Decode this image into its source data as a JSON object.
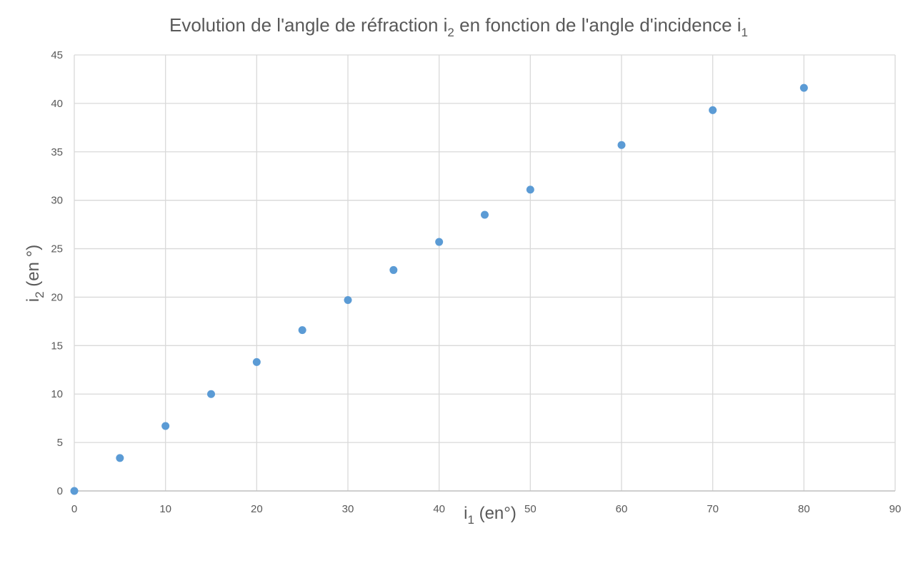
{
  "chart_data": {
    "type": "scatter",
    "title": {
      "prefix": "Evolution de l'angle de réfraction i",
      "sub1": "2",
      "middle": " en fonction de l'angle d'incidence i",
      "sub2": "1"
    },
    "xlabel": {
      "base": "i",
      "sub": "1",
      "rest": " (en°)"
    },
    "ylabel": {
      "base": "i",
      "sub": "2",
      "rest": " (en °)"
    },
    "xlim": [
      0,
      90
    ],
    "ylim": [
      0,
      45
    ],
    "xticks": [
      "0",
      "10",
      "20",
      "30",
      "40",
      "50",
      "60",
      "70",
      "80",
      "90"
    ],
    "yticks": [
      "0",
      "5",
      "10",
      "15",
      "20",
      "25",
      "30",
      "35",
      "40",
      "45"
    ],
    "grid": true,
    "marker_color": "#5B9BD5",
    "x": [
      0,
      5,
      10,
      15,
      20,
      25,
      30,
      35,
      40,
      45,
      50,
      60,
      70,
      80
    ],
    "y": [
      0,
      3.4,
      6.7,
      10.0,
      13.3,
      16.6,
      19.7,
      22.8,
      25.7,
      28.5,
      31.1,
      35.7,
      39.3,
      41.6
    ]
  }
}
